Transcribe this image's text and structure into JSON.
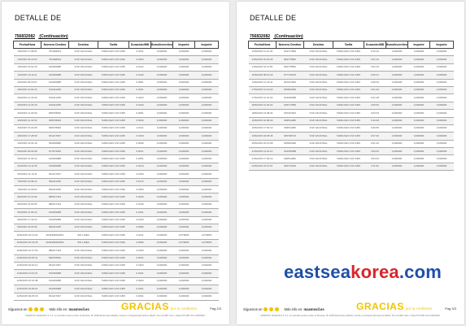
{
  "document": {
    "title": "DETALLE DE",
    "number": "756832082",
    "continuation": "(Continuación)"
  },
  "columns": [
    "Fecha/Hora",
    "Número Destino",
    "Destino",
    "Tarifa",
    "Duración/MB",
    "Bono/Incentivo",
    "Importe",
    "Importe"
  ],
  "left_page": {
    "rows": [
      [
        "1/6/2015 17:08:51",
        "781468923",
        "VOZ NACIONAL",
        "TARIFA MAS VOZ CUBO",
        "0.0311",
        "0,000000",
        "0,000000",
        "0,000000"
      ],
      [
        "1/6/2015 18:10:03",
        "781468923",
        "VOZ NACIONAL",
        "TARIFA MAS VOZ CUBO",
        "0.0460",
        "0,000000",
        "0,000000",
        "0,000000"
      ],
      [
        "1/6/2015 19:02:15",
        "619345988",
        "VOZ NACIONAL",
        "TARIFA MAS VOZ CUBO",
        "0.0212",
        "0,000000",
        "0,000000",
        "0,000000"
      ],
      [
        "1/6/2015 19:11:21",
        "619345988",
        "VOZ NACIONAL",
        "TARIFA MAS VOZ CUBO",
        "0.0140",
        "0,000000",
        "0,000000",
        "0,000000"
      ],
      [
        "2/6/2015 09:10:07",
        "619345988",
        "VOZ NACIONAL",
        "TARIFA MAS VOZ CUBO",
        "0.0501",
        "0,000000",
        "0,000000",
        "0,000000"
      ],
      [
        "2/6/2015 10:02:44",
        "619421035",
        "VOZ NACIONAL",
        "TARIFA MAS VOZ CUBO",
        "0.0041",
        "0,000000",
        "0,000000",
        "0,000000"
      ],
      [
        "2/6/2015 12:16:30",
        "619421035",
        "VOZ NACIONAL",
        "TARIFA MAS VOZ CUBO",
        "0.0220",
        "0,000000",
        "0,000000",
        "0,000000"
      ],
      [
        "2/6/2015 13:40:19",
        "619421035",
        "VOZ NACIONAL",
        "TARIFA MAS VOZ CUBO",
        "0.0120",
        "0,000000",
        "0,000000",
        "0,000000"
      ],
      [
        "3/6/2015 11:02:06",
        "695378946",
        "VOZ NACIONAL",
        "TARIFA MAS VOZ CUBO",
        "0.0091",
        "0,000000",
        "0,000000",
        "0,000000"
      ],
      [
        "3/6/2015 11:41:52",
        "695378946",
        "VOZ NACIONAL",
        "TARIFA MAS VOZ CUBO",
        "0.0040",
        "0,000000",
        "0,000000",
        "0,000000"
      ],
      [
        "3/6/2015 15:20:28",
        "695378946",
        "VOZ NACIONAL",
        "TARIFA MAS VOZ CUBO",
        "0.0111",
        "0,000000",
        "0,000000",
        "0,000000"
      ],
      [
        "4/6/2015 17:28:39",
        "661217947",
        "VOZ NACIONAL",
        "TARIFA MAS VOZ CUBO",
        "0.0160",
        "0,000000",
        "0,000000",
        "0,000000"
      ],
      [
        "4/6/2015 19:04:19",
        "652660890",
        "VOZ NACIONAL",
        "TARIFA MAS VOZ CUBO",
        "0.0090",
        "0,000000",
        "0,000000",
        "0,000000"
      ],
      [
        "5/6/2015 20:26:38",
        "617673262",
        "VOZ NACIONAL",
        "TARIFA MAS VOZ CUBO",
        "0.0071",
        "0,000000",
        "0,000000",
        "0,000000"
      ],
      [
        "5/6/2015 21:06:12",
        "619345988",
        "VOZ NACIONAL",
        "TARIFA MAS VOZ CUBO",
        "0.0251",
        "0,000000",
        "0,000000",
        "0,000000"
      ],
      [
        "6/6/2015 13:11:09",
        "619345988",
        "VOZ NACIONAL",
        "TARIFA MAS VOZ CUBO",
        "0.0410",
        "0,000000",
        "0,000000",
        "0,000000"
      ],
      [
        "6/6/2015 14:10:11",
        "661217947",
        "VOZ NACIONAL",
        "TARIFA MAS VOZ CUBO",
        "0.0160",
        "0,000000",
        "0,000000",
        "0,000000"
      ],
      [
        "7/6/2015 10:58:14",
        "696421035",
        "VOZ NACIONAL",
        "TARIFA MAS VOZ CUBO",
        "0.0172",
        "0,000000",
        "0,000000",
        "0,000000"
      ],
      [
        "7/6/2015 12:09:03",
        "696421035",
        "VOZ NACIONAL",
        "TARIFA MAS VOZ CUBO",
        "0.0300",
        "0,000000",
        "0,000000",
        "0,000000"
      ],
      [
        "8/6/2015 15:10:40",
        "986017434",
        "VOZ NACIONAL",
        "TARIFA MAS VOZ CUBO",
        "0.0020",
        "0,000000",
        "0,000000",
        "0,000000"
      ],
      [
        "8/6/2015 16:02:55",
        "986017434",
        "VOZ NACIONAL",
        "TARIFA MAS VOZ CUBO",
        "0.0190",
        "0,000000",
        "0,000000",
        "0,000000"
      ],
      [
        "9/6/2015 11:30:12",
        "619345988",
        "VOZ NACIONAL",
        "TARIFA MAS VOZ CUBO",
        "0.0121",
        "0,000000",
        "0,000000",
        "0,000000"
      ],
      [
        "9/6/2015 17:32:24",
        "619345988",
        "VOZ NACIONAL",
        "TARIFA MAS VOZ CUBO",
        "0.0160",
        "0,000000",
        "0,000000",
        "0,000000"
      ],
      [
        "9/6/2015 18:29:45",
        "696421035",
        "VOZ NACIONAL",
        "TARIFA MAS VOZ CUBO",
        "0.0080",
        "0,000000",
        "0,000000",
        "0,000000"
      ],
      [
        "10/6/2015 10:12:04",
        "0034938401831",
        "SIN LINEA",
        "TARIFA MAS VOZ CUBO",
        "0.0111",
        "0,000000",
        "0,079836",
        "0,079836"
      ],
      [
        "10/6/2015 10:16:35",
        "0034938401833",
        "SIN LINEA",
        "TARIFA MAS VOZ CUBO",
        "0.0080",
        "0,000000",
        "0,079836",
        "0,079836"
      ],
      [
        "10/6/2015 12:47:50",
        "986017434",
        "VOZ NACIONAL",
        "TARIFA MAS VOZ CUBO",
        "0.0150",
        "0,000000",
        "0,000000",
        "0,000000"
      ],
      [
        "11/6/2015 09:20:31",
        "695378946",
        "VOZ NACIONAL",
        "TARIFA MAS VOZ CUBO",
        "0.0041",
        "0,000000",
        "0,000000",
        "0,000000"
      ],
      [
        "11/6/2015 09:40:12",
        "661217947",
        "VOZ NACIONAL",
        "TARIFA MAS VOZ CUBO",
        "0.0100",
        "0,000000",
        "0,000000",
        "0,000000"
      ],
      [
        "11/6/2015 11:02:31",
        "619345988",
        "VOZ NACIONAL",
        "TARIFA MAS VOZ CUBO",
        "0.0161",
        "0,000000",
        "0,000000",
        "0,000000"
      ],
      [
        "11/6/2015 15:15:38",
        "619345988",
        "VOZ NACIONAL",
        "TARIFA MAS VOZ CUBO",
        "0.0200",
        "0,000000",
        "0,000000",
        "0,000000"
      ],
      [
        "11/6/2015 16:48:21",
        "619345988",
        "VOZ NACIONAL",
        "TARIFA MAS VOZ CUBO",
        "0.0191",
        "0,000000",
        "0,000000",
        "0,000000"
      ],
      [
        "12/6/2015 09:25:16",
        "661217947",
        "VOZ NACIONAL",
        "TARIFA MAS VOZ CUBO",
        "0.0031",
        "0,000000",
        "0,000000",
        "0,000000"
      ]
    ],
    "footer": {
      "social": "Síguenos en",
      "web_prefix": "Más info en:",
      "web": "masmovil.es",
      "gracias": "GRACIAS",
      "gracias_sub": "por tu confianza",
      "page": "Pag 2/3"
    },
    "legal": "MASMOVIL TELECOM 3.0, S.A. con domicilio social en Avda. de Bruselas, 38, 28108 Alcobendas (Madrid). Inscrita en el Registro Mercantil de Madrid, Tomo 31.886, Folio 1, Hoja M-573.986. NIF A-84633643."
  },
  "right_page": {
    "rows": [
      [
        "13/6/2015 11:12:32",
        "619717899",
        "VOZ NACIONAL",
        "TARIFA MAS VOZ CUBO",
        "0:10:12",
        "0,000000",
        "0,000000",
        "0,000000"
      ],
      [
        "13/6/2015 16:30:45",
        "669775852",
        "VOZ NACIONAL",
        "TARIFA MAS VOZ CUBO",
        "0:01:10",
        "0,000000",
        "0,000000",
        "0,000000"
      ],
      [
        "14/6/2015 10:11:50",
        "669775852",
        "VOZ NACIONAL",
        "TARIFA MAS VOZ CUBO",
        "0:01:23",
        "0,000000",
        "0,000000",
        "0,000000"
      ],
      [
        "15/6/2015 08:10:16",
        "677715163",
        "VOZ NACIONAL",
        "TARIFA MAS VOZ CUBO",
        "0:00:41",
        "0,000000",
        "0,000000",
        "0,000000"
      ],
      [
        "16/6/2015 12:40:11",
        "691017834",
        "VOZ NACIONAL",
        "TARIFA MAS VOZ CUBO",
        "0:06:02",
        "0,000000",
        "0,000000",
        "0,000000"
      ],
      [
        "17/6/2015 12:10:40",
        "625662096",
        "VOZ NACIONAL",
        "TARIFA MAS VOZ CUBO",
        "0:01:20",
        "0,000000",
        "0,000000",
        "0,000000"
      ],
      [
        "17/6/2015 12:31:32",
        "619345988",
        "VOZ NACIONAL",
        "TARIFA MAS VOZ CUBO",
        "0:01:48",
        "0,000000",
        "0,000000",
        "0,000000"
      ],
      [
        "18/6/2015 12:34:24",
        "618717899",
        "VOZ NACIONAL",
        "TARIFA MAS VOZ CUBO",
        "0:00:52",
        "0,000000",
        "0,000000",
        "0,000000"
      ],
      [
        "18/6/2015 13:08:34",
        "615437032",
        "VOZ NACIONAL",
        "TARIFA MAS VOZ CUBO",
        "0:02:03",
        "0,000000",
        "0,000000",
        "0,000000"
      ],
      [
        "19/6/2015 10:08:40",
        "609511280",
        "VOZ NACIONAL",
        "TARIFA MAS VOZ CUBO",
        "0:10:48",
        "0,000000",
        "0,000000",
        "0,000000"
      ],
      [
        "19/6/2015 17:52:10",
        "609511280",
        "VOZ NACIONAL",
        "TARIFA MAS VOZ CUBO",
        "0:00:56",
        "0,000000",
        "0,000000",
        "0,000000"
      ],
      [
        "19/6/2015 18:38:45",
        "625798716",
        "VOZ NACIONAL",
        "TARIFA MAS VOZ CUBO",
        "0:07:20",
        "0,000000",
        "0,000000",
        "0,000000"
      ],
      [
        "20/6/2015 15:13:08",
        "625662096",
        "VOZ NACIONAL",
        "TARIFA MAS VOZ CUBO",
        "0:01:42",
        "0,000000",
        "0,000000",
        "0,000000"
      ],
      [
        "21/6/2015 11:10:12",
        "619345988",
        "VOZ NACIONAL",
        "TARIFA MAS VOZ CUBO",
        "0:00:51",
        "0,000000",
        "0,000000",
        "0,000000"
      ],
      [
        "21/6/2015 17:09:12",
        "609511280",
        "VOZ NACIONAL",
        "TARIFA MAS VOZ CUBO",
        "0:03:33",
        "0,000000",
        "0,000000",
        "0,000000"
      ],
      [
        "22/6/2015 16:12:57",
        "629772226",
        "VOZ NACIONAL",
        "TARIFA MAS VOZ CUBO",
        "0:11:02",
        "0,000000",
        "0,000000",
        "0,000000"
      ]
    ],
    "footer": {
      "social": "Síguenos en",
      "web_prefix": "Más info en:",
      "web": "masmovil.es",
      "gracias": "GRACIAS",
      "gracias_sub": "por tu confianza",
      "page": "Pag 3/3"
    },
    "legal": "MASMOVIL TELECOM 3.0, S.A. con domicilio social en Avda. de Bruselas, 38, 28108 Alcobendas (Madrid). Inscrita en el Registro Mercantil de Madrid, Tomo 31.886, Folio 1, Hoja M-573.986. NIF A-84633643."
  },
  "watermark": {
    "part1": "eastsea",
    "part2": "korea",
    "part3": ".com"
  },
  "colors": {
    "accent": "#f3c300",
    "watermark_blue": "#1f4fa8",
    "watermark_red": "#d9252a"
  }
}
